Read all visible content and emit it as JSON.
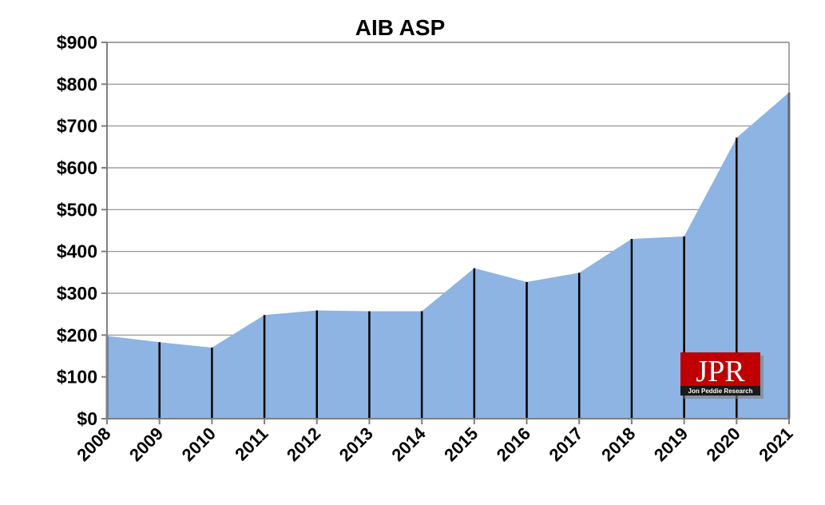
{
  "chart_data": {
    "type": "area",
    "title": "AIB ASP",
    "xlabel": "",
    "ylabel": "",
    "categories": [
      "2008",
      "2009",
      "2010",
      "2011",
      "2012",
      "2013",
      "2014",
      "2015",
      "2016",
      "2017",
      "2018",
      "2019",
      "2020",
      "2021"
    ],
    "values": [
      198,
      183,
      170,
      248,
      259,
      257,
      257,
      360,
      327,
      349,
      430,
      436,
      672,
      780
    ],
    "ylim": [
      0,
      900
    ],
    "yticks": [
      0,
      100,
      200,
      300,
      400,
      500,
      600,
      700,
      800,
      900
    ],
    "ytick_labels": [
      "$0",
      "$100",
      "$200",
      "$300",
      "$400",
      "$500",
      "$600",
      "$700",
      "$800",
      "$900"
    ],
    "grid": true,
    "fill_color": "#8DB4E2",
    "drop_line_color": "#000000"
  },
  "logo": {
    "main_text": "JPR",
    "sub_text": "Jon Peddie Research",
    "color": "#C00000"
  }
}
